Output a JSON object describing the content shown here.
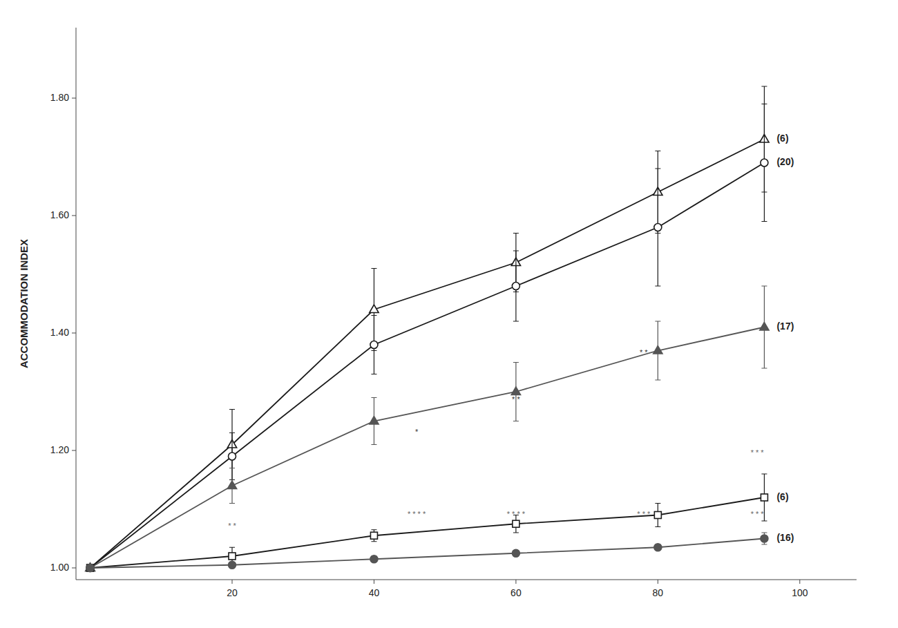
{
  "chart_data": {
    "type": "line",
    "y_label": "ACCOMMODATION INDEX",
    "x": [
      0,
      20,
      40,
      60,
      80,
      95
    ],
    "xlim": [
      -2,
      108
    ],
    "ylim": [
      0.98,
      1.92
    ],
    "xticks": [
      20,
      40,
      60,
      80,
      100
    ],
    "yticks": [
      {
        "value": 1.0,
        "label": "1.00"
      },
      {
        "value": 1.2,
        "label": "1.20"
      },
      {
        "value": 1.4,
        "label": "1.40"
      },
      {
        "value": 1.6,
        "label": "1.60"
      },
      {
        "value": 1.8,
        "label": "1.80"
      }
    ],
    "grid": false,
    "series": [
      {
        "name": "(6)",
        "color": "#1a1a1a",
        "marker": "triangle-open",
        "values": [
          1.0,
          1.21,
          1.44,
          1.52,
          1.64,
          1.73
        ],
        "errors": [
          0,
          0.06,
          0.07,
          0.05,
          0.07,
          0.09
        ]
      },
      {
        "name": "(20)",
        "color": "#1a1a1a",
        "marker": "circle-open",
        "values": [
          1.0,
          1.19,
          1.38,
          1.48,
          1.58,
          1.69
        ],
        "errors": [
          0,
          0.04,
          0.05,
          0.06,
          0.1,
          0.1
        ]
      },
      {
        "name": "(17)",
        "color": "#555555",
        "marker": "triangle",
        "values": [
          1.0,
          1.14,
          1.25,
          1.3,
          1.37,
          1.41
        ],
        "errors": [
          0,
          0.03,
          0.04,
          0.05,
          0.05,
          0.07
        ]
      },
      {
        "name": "(6)",
        "color": "#1a1a1a",
        "marker": "square-open",
        "values": [
          1.0,
          1.02,
          1.055,
          1.075,
          1.09,
          1.12
        ],
        "errors": [
          0,
          0.015,
          0.01,
          0.015,
          0.02,
          0.04
        ]
      },
      {
        "name": "(16)",
        "color": "#555555",
        "marker": "circle",
        "values": [
          1.0,
          1.005,
          1.015,
          1.025,
          1.035,
          1.05
        ],
        "errors": [
          0,
          0.005,
          0.005,
          0.005,
          0.005,
          0.01
        ]
      }
    ],
    "annotations": [
      {
        "x": 20,
        "y": 1.065,
        "text": "* *",
        "color": "#666666"
      },
      {
        "x": 46,
        "y": 1.085,
        "text": "* * * *",
        "color": "#666666"
      },
      {
        "x": 46,
        "y": 1.225,
        "text": "*",
        "color": "#333333"
      },
      {
        "x": 60,
        "y": 1.085,
        "text": "* * * *",
        "color": "#666666"
      },
      {
        "x": 60,
        "y": 1.28,
        "text": "* *",
        "color": "#333333"
      },
      {
        "x": 78,
        "y": 1.085,
        "text": "* * *",
        "color": "#666666"
      },
      {
        "x": 78,
        "y": 1.36,
        "text": "* *",
        "color": "#333333"
      },
      {
        "x": 94,
        "y": 1.085,
        "text": "* * *",
        "color": "#666666"
      },
      {
        "x": 94,
        "y": 1.19,
        "text": "* * *",
        "color": "#666666"
      }
    ]
  }
}
